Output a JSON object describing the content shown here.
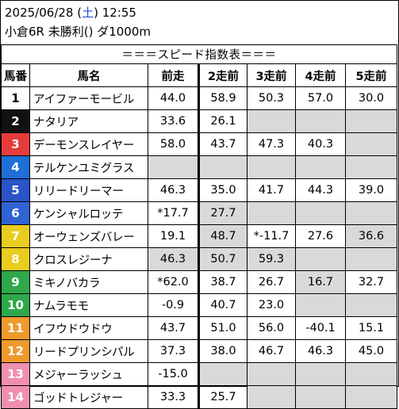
{
  "header": {
    "date": "2025/06/28",
    "dow_open": " (",
    "dow": "土",
    "dow_close": ") ",
    "time": "12:55",
    "race": "小倉6R 未勝利() ダ1000m"
  },
  "table": {
    "title": "＝＝＝スピード指数表＝＝＝",
    "columns": [
      "馬番",
      "馬名",
      "前走",
      "2走前",
      "3走前",
      "4走前",
      "5走前"
    ],
    "rows": [
      {
        "num": "1",
        "name": "アイファーモービル",
        "color": "#ffffff",
        "num_text_color": "#000000",
        "values": [
          "44.0",
          "58.9",
          "50.3",
          "57.0",
          "30.0"
        ],
        "gray": [
          false,
          false,
          false,
          false,
          false
        ]
      },
      {
        "num": "2",
        "name": "ナタリア",
        "color": "#111111",
        "num_text_color": "#ffffff",
        "values": [
          "33.6",
          "26.1",
          "",
          "",
          ""
        ],
        "gray": [
          false,
          false,
          true,
          true,
          true
        ]
      },
      {
        "num": "3",
        "name": "デーモンスレイヤー",
        "color": "#e53b3b",
        "num_text_color": "#ffffff",
        "values": [
          "58.0",
          "43.7",
          "47.3",
          "40.3",
          ""
        ],
        "gray": [
          false,
          false,
          false,
          false,
          true
        ]
      },
      {
        "num": "4",
        "name": "テルケンユミグラス",
        "color": "#1f6fd6",
        "num_text_color": "#ffffff",
        "values": [
          "",
          "",
          "",
          "",
          ""
        ],
        "gray": [
          true,
          true,
          true,
          true,
          true
        ]
      },
      {
        "num": "5",
        "name": "リリードリーマー",
        "color": "#2a54c8",
        "num_text_color": "#ffffff",
        "values": [
          "46.3",
          "35.0",
          "41.7",
          "44.3",
          "39.0"
        ],
        "gray": [
          false,
          false,
          false,
          false,
          false
        ]
      },
      {
        "num": "6",
        "name": "ケンシャルロッテ",
        "color": "#2f63d3",
        "num_text_color": "#ffffff",
        "values": [
          "*17.7",
          "27.7",
          "",
          "",
          ""
        ],
        "gray": [
          false,
          true,
          true,
          true,
          true
        ]
      },
      {
        "num": "7",
        "name": "オーウェンズバレー",
        "color": "#e8cc1e",
        "num_text_color": "#ffffff",
        "values": [
          "19.1",
          "48.7",
          "*-11.7",
          "27.6",
          "36.6"
        ],
        "gray": [
          false,
          true,
          false,
          false,
          true
        ]
      },
      {
        "num": "8",
        "name": "クロスレジーナ",
        "color": "#e8cc1e",
        "num_text_color": "#ffffff",
        "values": [
          "46.3",
          "50.7",
          "59.3",
          "",
          ""
        ],
        "gray": [
          true,
          true,
          true,
          true,
          true
        ]
      },
      {
        "num": "9",
        "name": "ミキノバカラ",
        "color": "#2ea84a",
        "num_text_color": "#ffffff",
        "values": [
          "*62.0",
          "38.7",
          "26.7",
          "16.7",
          "32.7"
        ],
        "gray": [
          false,
          false,
          false,
          true,
          false
        ]
      },
      {
        "num": "10",
        "name": "ナムラモモ",
        "color": "#2ea84a",
        "num_text_color": "#ffffff",
        "values": [
          "-0.9",
          "40.7",
          "23.0",
          "",
          ""
        ],
        "gray": [
          false,
          false,
          false,
          true,
          true
        ]
      },
      {
        "num": "11",
        "name": "イフウドウドウ",
        "color": "#ef9a2c",
        "num_text_color": "#ffffff",
        "values": [
          "43.7",
          "51.0",
          "56.0",
          "-40.1",
          "15.1"
        ],
        "gray": [
          false,
          false,
          false,
          false,
          false
        ]
      },
      {
        "num": "12",
        "name": "リードプリンシパル",
        "color": "#ef9a2c",
        "num_text_color": "#ffffff",
        "values": [
          "37.3",
          "38.0",
          "46.7",
          "46.3",
          "45.0"
        ],
        "gray": [
          false,
          false,
          false,
          false,
          false
        ]
      },
      {
        "num": "13",
        "name": "メジャーラッシュ",
        "color": "#ef8fb0",
        "num_text_color": "#ffffff",
        "values": [
          "-15.0",
          "",
          "",
          "",
          ""
        ],
        "gray": [
          false,
          true,
          true,
          true,
          true
        ]
      },
      {
        "num": "14",
        "name": "ゴッドトレジャー",
        "color": "#ef8fb0",
        "num_text_color": "#ffffff",
        "values": [
          "33.3",
          "25.7",
          "",
          "",
          ""
        ],
        "gray": [
          false,
          false,
          true,
          true,
          true
        ]
      }
    ]
  }
}
